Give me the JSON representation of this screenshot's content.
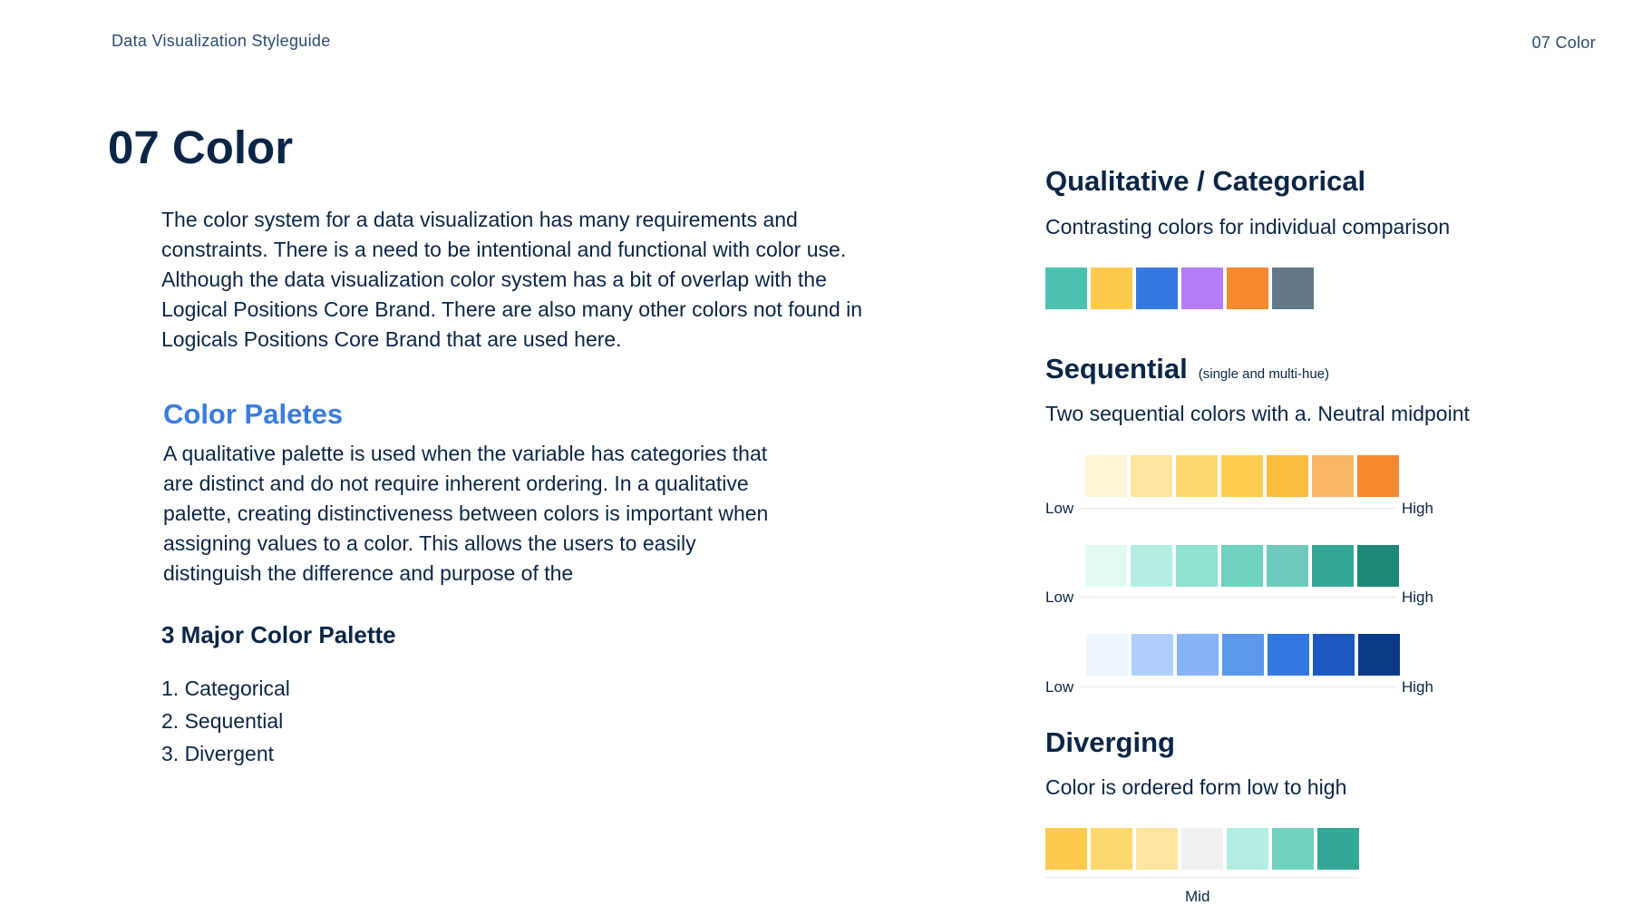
{
  "header": {
    "left": "Data Visualization Styleguide",
    "right": "07 Color"
  },
  "page_title": "07 Color",
  "intro": "The color system for a data visualization has many requirements and constraints. There is a need to be intentional and functional with color use. Although the data visualization color system has a bit of overlap with the Logical Positions Core Brand. There are also many other colors not found in Logicals Positions Core Brand that are used here.",
  "palettes": {
    "title": "Color Paletes",
    "body": "A qualitative palette is used when the variable has categories that are distinct and do not require inherent ordering.  In a qualitative palette,  creating distinctiveness between colors is important when assigning values to a color.  This allows the users to easily distinguish the difference and purpose of the"
  },
  "major": {
    "title": "3 Major Color Palette",
    "items": [
      "1. Categorical",
      "2. Sequential",
      "3. Divergent"
    ]
  },
  "qualitative": {
    "title": "Qualitative / Categorical",
    "desc": "Contrasting colors for individual comparison",
    "colors": [
      "#4cc1b0",
      "#fdca4d",
      "#3478e0",
      "#b57bf7",
      "#f4892f",
      "#617987"
    ]
  },
  "sequential": {
    "title": "Sequential",
    "note": "(single and multi-hue)",
    "desc": "Two sequential colors with a. Neutral midpoint",
    "low_label": "Low",
    "high_label": "High",
    "rows": [
      [
        "#fef4d6",
        "#fee59f",
        "#fdd86c",
        "#fdcb4d",
        "#fbbd3e",
        "#fab564",
        "#f4892f"
      ],
      [
        "#e1faf4",
        "#b4efe3",
        "#8fe3d0",
        "#6fd2c0",
        "#6fcabd",
        "#33a896",
        "#1f8878"
      ],
      [
        "#edf5fe",
        "#aecffc",
        "#85b3f5",
        "#5c97ee",
        "#3577e0",
        "#1c58be",
        "#0b3a86"
      ]
    ]
  },
  "diverging": {
    "title": "Diverging",
    "desc": "Color is ordered form low to high",
    "mid_label": "Mid",
    "colors": [
      "#fdca4d",
      "#fdd86c",
      "#fee59f",
      "#f0f0f0",
      "#b4efe3",
      "#6fd2c0",
      "#33a896"
    ]
  }
}
